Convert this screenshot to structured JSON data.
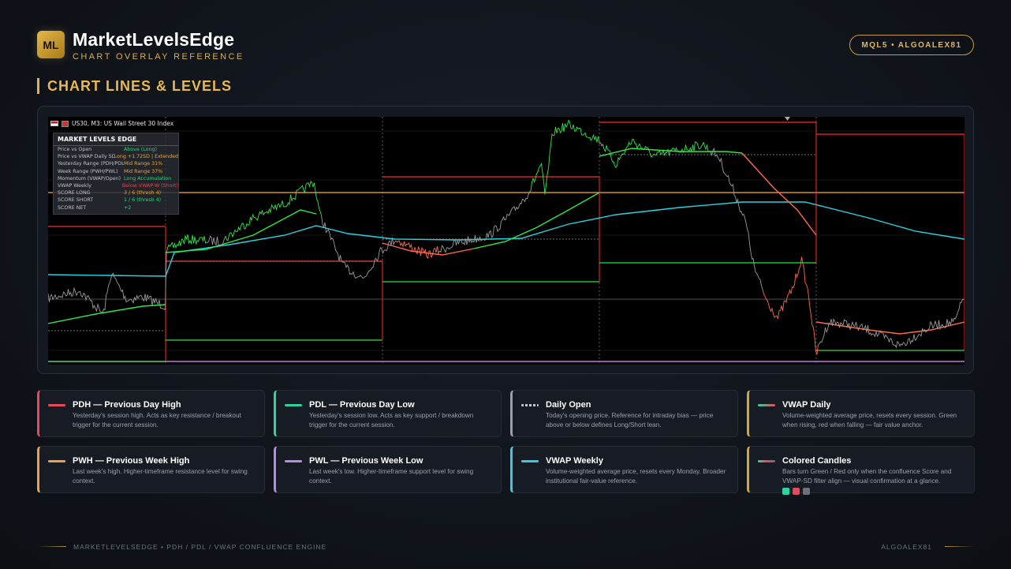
{
  "header": {
    "logo_text": "ML",
    "brand": "MarketLevelsEdge",
    "subtitle": "CHART OVERLAY REFERENCE",
    "badge": "MQL5  •  ALGOALEX81"
  },
  "section_title": "CHART LINES & LEVELS",
  "chart": {
    "symbol": "US30, M3:  US Wall Street 30 Index",
    "dashboard": {
      "title": "MARKET LEVELS EDGE",
      "rows": [
        {
          "label": "Price vs Open",
          "value": "Above (Long)",
          "color": "#2bd67b"
        },
        {
          "label": "Price vs VWAP Daily SD",
          "value": "Long +1.72SD | Extended",
          "color": "#f4a623"
        },
        {
          "label": "Yesterday Range (PDH/PDL)",
          "value": "Mid Range 31%",
          "color": "#f4a623"
        },
        {
          "label": "Week Range (PWH/PWL)",
          "value": "Mid Range 37%",
          "color": "#f4a623"
        },
        {
          "label": "Momentum (VWAP/Open)",
          "value": "Long Accumulation",
          "color": "#2bd67b"
        },
        {
          "label": "VWAP Weekly",
          "value": "Below VWAP-W (Short)",
          "color": "#ff3b3b"
        },
        {
          "label": "SCORE LONG",
          "value": "3 / 6  (thresh 4)",
          "color": "#f4a623"
        },
        {
          "label": "SCORE SHORT",
          "value": "1 / 6  (thresh 4)",
          "color": "#2bd67b"
        },
        {
          "label": "SCORE NET",
          "value": "+2",
          "color": "#2bd67b"
        }
      ]
    },
    "colors": {
      "pdh": "#ff2a2a",
      "pdl": "#27e33f",
      "open": "#9a9a9a",
      "vwap_w": "#27d3e0",
      "pwh": "#ffaa44",
      "pwl": "#c479e0",
      "bull": "#2ee64a",
      "bear": "#ff6a4a",
      "neutral": "#9a9a9a"
    }
  },
  "legend": [
    {
      "title": "PDH — Previous Day High",
      "desc": "Yesterday's session high. Acts as key resistance / breakout trigger for the current session.",
      "color": "#e8485c",
      "swatch": "solid",
      "icon": "solid-line-icon"
    },
    {
      "title": "PDL — Previous Day Low",
      "desc": "Yesterday's session low. Acts as key support / breakdown trigger for the current session.",
      "color": "#2fd3a0",
      "swatch": "solid",
      "icon": "solid-line-icon"
    },
    {
      "title": "Daily Open",
      "desc": "Today's opening price. Reference for intraday bias — price above or below defines Long/Short lean.",
      "color": "#9aa0aa",
      "swatch": "dotted",
      "icon": "dotted-line-icon"
    },
    {
      "title": "VWAP Daily",
      "desc": "Volume-weighted average price, resets every session. Green when rising, red when falling — fair value anchor.",
      "color": "#d4a73a",
      "swatch": "gradient",
      "icon": "gradient-line-icon"
    },
    {
      "title": "PWH — Previous Week High",
      "desc": "Last week's high. Higher-timeframe resistance level for swing context.",
      "color": "#f0a04a",
      "swatch": "solid",
      "icon": "solid-line-icon"
    },
    {
      "title": "PWL — Previous Week Low",
      "desc": "Last week's low. Higher-timeframe support level for swing context.",
      "color": "#b88ae6",
      "swatch": "solid",
      "icon": "solid-line-icon"
    },
    {
      "title": "VWAP Weekly",
      "desc": "Volume-weighted average price, resets every Monday. Broader institutional fair-value reference.",
      "color": "#3fc8e0",
      "swatch": "solid",
      "icon": "solid-line-icon"
    },
    {
      "title": "Colored Candles",
      "desc": "Bars turn Green / Red only when the confluence Score and VWAP-SD filter align — visual confirmation at a glance.",
      "color": "#d4a73a",
      "swatch": "gradient2",
      "icon": "candle-colors-icon",
      "squares": [
        "#2fd3a0",
        "#e8485c",
        "#6b7079"
      ]
    }
  ],
  "footer": {
    "left": "MARKETLEVELSEDGE  •  PDH / PDL / VWAP CONFLUENCE ENGINE",
    "right": "ALGOALEX81"
  }
}
